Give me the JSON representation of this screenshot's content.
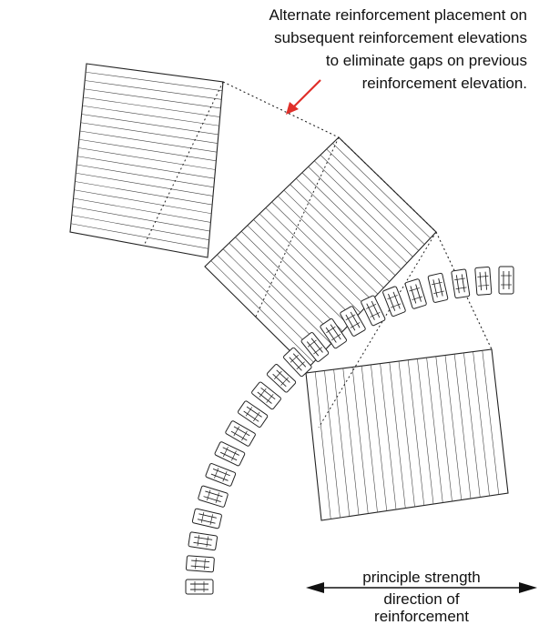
{
  "annotation": {
    "lines": [
      "Alternate reinforcement placement on",
      "subsequent reinforcement elevations",
      "to eliminate gaps on previous",
      "reinforcement elevation."
    ],
    "arrow_color": "#e0302a"
  },
  "strength": {
    "label_top": "principle strength",
    "label_bottom_1": "direction of",
    "label_bottom_2": "reinforcement"
  }
}
